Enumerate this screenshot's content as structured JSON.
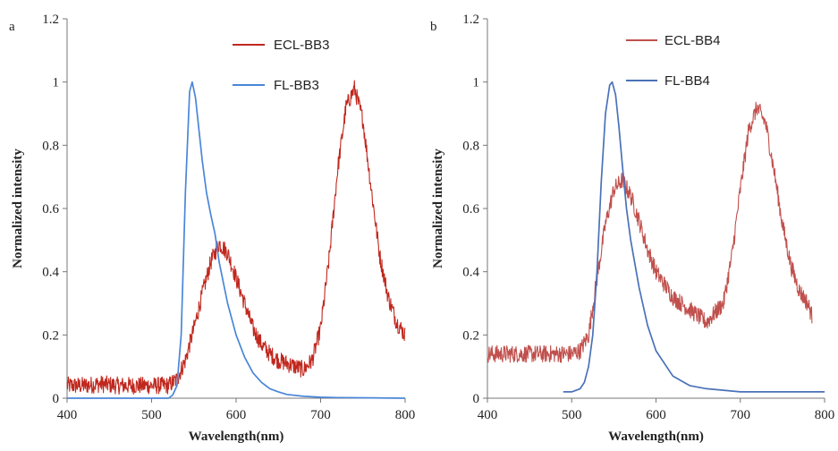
{
  "chart_data": [
    {
      "type": "line",
      "panel_label": "a",
      "xlabel": "Wavelength(nm)",
      "ylabel": "Normalized intensity",
      "xlim": [
        400,
        800
      ],
      "ylim": [
        0,
        1.2
      ],
      "xticks": [
        400,
        500,
        600,
        700,
        800
      ],
      "yticks": [
        0,
        0.2,
        0.4,
        0.6,
        0.8,
        1,
        1.2
      ],
      "ytick_labels": [
        "0",
        "0.2",
        "0.4",
        "0.6",
        "0.8",
        "1",
        "1.2"
      ],
      "grid": false,
      "legend_position": "top-center",
      "series": [
        {
          "name": "ECL-BB3",
          "color": "#c0281e",
          "noisy": true,
          "x": [
            400,
            420,
            440,
            460,
            480,
            500,
            510,
            520,
            530,
            540,
            550,
            560,
            570,
            580,
            590,
            600,
            610,
            620,
            630,
            640,
            650,
            660,
            670,
            680,
            690,
            700,
            710,
            720,
            730,
            740,
            750,
            760,
            770,
            780,
            790,
            800
          ],
          "values": [
            0.04,
            0.04,
            0.045,
            0.04,
            0.04,
            0.04,
            0.04,
            0.04,
            0.06,
            0.12,
            0.22,
            0.33,
            0.43,
            0.49,
            0.46,
            0.38,
            0.3,
            0.22,
            0.17,
            0.14,
            0.12,
            0.11,
            0.1,
            0.09,
            0.12,
            0.22,
            0.44,
            0.72,
            0.92,
            0.98,
            0.88,
            0.66,
            0.45,
            0.32,
            0.24,
            0.2
          ]
        },
        {
          "name": "FL-BB3",
          "color": "#4a86d8",
          "noisy": false,
          "x": [
            400,
            500,
            520,
            525,
            530,
            535,
            540,
            545,
            548,
            552,
            556,
            560,
            565,
            570,
            575,
            580,
            590,
            600,
            610,
            620,
            630,
            640,
            650,
            660,
            680,
            700,
            720,
            760,
            800
          ],
          "values": [
            0.0,
            0.0,
            0.0,
            0.01,
            0.04,
            0.2,
            0.65,
            0.97,
            1.0,
            0.95,
            0.85,
            0.75,
            0.65,
            0.58,
            0.52,
            0.43,
            0.3,
            0.2,
            0.13,
            0.08,
            0.05,
            0.03,
            0.02,
            0.012,
            0.006,
            0.003,
            0.002,
            0.001,
            0.0
          ]
        }
      ]
    },
    {
      "type": "line",
      "panel_label": "b",
      "xlabel": "Wavelength(nm)",
      "ylabel": "Normalized intensity",
      "xlim": [
        400,
        800
      ],
      "ylim": [
        0,
        1.2
      ],
      "xticks": [
        400,
        500,
        600,
        700,
        800
      ],
      "yticks": [
        0,
        0.2,
        0.4,
        0.6,
        0.8,
        1,
        1.2
      ],
      "ytick_labels": [
        "0",
        "0.2",
        "0.4",
        "0.6",
        "0.8",
        "1",
        "1.2"
      ],
      "grid": false,
      "legend_position": "top-center",
      "series": [
        {
          "name": "ECL-BB4",
          "color": "#c0504d",
          "noisy": true,
          "x": [
            400,
            420,
            440,
            460,
            480,
            500,
            510,
            520,
            530,
            540,
            550,
            560,
            570,
            580,
            590,
            600,
            620,
            640,
            660,
            680,
            690,
            700,
            710,
            720,
            730,
            740,
            750,
            760,
            770,
            780,
            785
          ],
          "values": [
            0.14,
            0.14,
            0.14,
            0.14,
            0.14,
            0.14,
            0.15,
            0.2,
            0.38,
            0.55,
            0.66,
            0.69,
            0.64,
            0.56,
            0.47,
            0.4,
            0.32,
            0.28,
            0.24,
            0.3,
            0.45,
            0.66,
            0.85,
            0.92,
            0.87,
            0.72,
            0.55,
            0.42,
            0.34,
            0.3,
            0.26
          ]
        },
        {
          "name": "FL-BB4",
          "color": "#4a72b8",
          "noisy": false,
          "x": [
            490,
            500,
            510,
            515,
            520,
            525,
            530,
            535,
            540,
            545,
            548,
            552,
            556,
            560,
            565,
            570,
            580,
            590,
            600,
            620,
            640,
            660,
            700,
            750,
            800
          ],
          "values": [
            0.02,
            0.02,
            0.03,
            0.05,
            0.1,
            0.2,
            0.4,
            0.68,
            0.9,
            0.99,
            1.0,
            0.96,
            0.86,
            0.74,
            0.6,
            0.5,
            0.35,
            0.23,
            0.15,
            0.07,
            0.04,
            0.03,
            0.02,
            0.02,
            0.02
          ]
        }
      ]
    }
  ]
}
